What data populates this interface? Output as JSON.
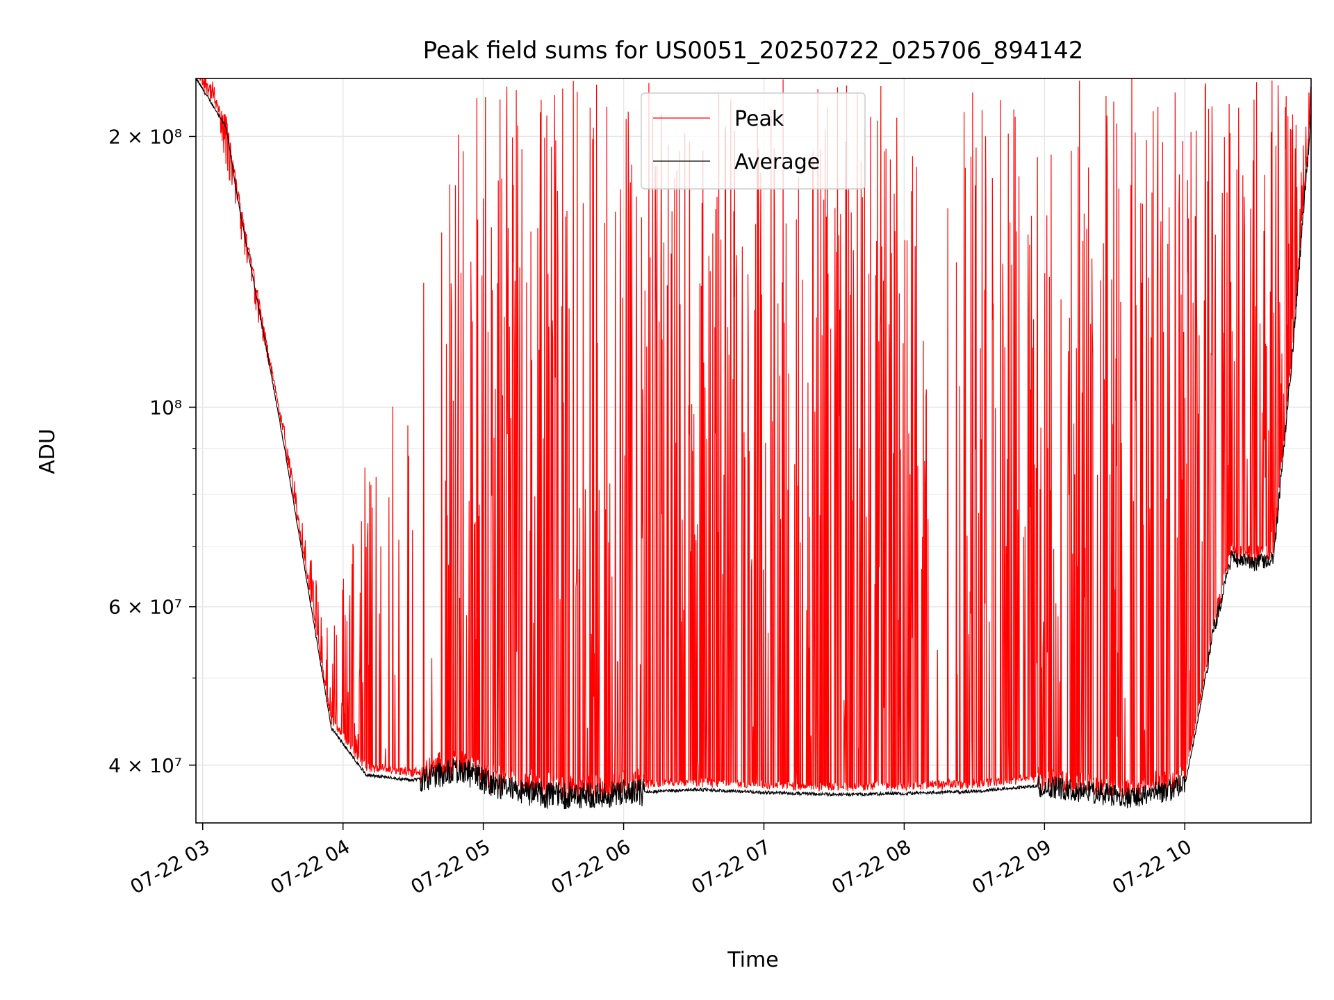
{
  "chart_data": {
    "type": "line",
    "title": "Peak field sums for US0051_20250722_025706_894142",
    "xlabel": "Time",
    "ylabel": "ADU",
    "y_scale": "log",
    "xlim": [
      "2025-07-22T02:57:06",
      "2025-07-22T10:54:00"
    ],
    "ylim": [
      34500000,
      232000000
    ],
    "x_ticks": [
      "07-22 03",
      "07-22 04",
      "07-22 05",
      "07-22 06",
      "07-22 07",
      "07-22 08",
      "07-22 09",
      "07-22 10"
    ],
    "y_ticks": [
      {
        "value": 40000000,
        "label": "4 × 10⁷"
      },
      {
        "value": 60000000,
        "label": "6 × 10⁷"
      },
      {
        "value": 100000000,
        "label": "10⁸"
      },
      {
        "value": 200000000,
        "label": "2 × 10⁸"
      }
    ],
    "grid": true,
    "legend": "upper center",
    "series": [
      {
        "name": "Peak",
        "color": "#ff0000",
        "style": "noisy spikes above baseline",
        "x": [
          "2025-07-22T02:57:06",
          "2025-07-22T03:05:00",
          "2025-07-22T03:15:00",
          "2025-07-22T03:25:00",
          "2025-07-22T03:35:00",
          "2025-07-22T03:45:00",
          "2025-07-22T03:55:00",
          "2025-07-22T04:10:00",
          "2025-07-22T04:30:00",
          "2025-07-22T04:50:00",
          "2025-07-22T05:10:00",
          "2025-07-22T05:30:00",
          "2025-07-22T06:00:00",
          "2025-07-22T06:30:00",
          "2025-07-22T07:00:00",
          "2025-07-22T07:30:00",
          "2025-07-22T08:00:00",
          "2025-07-22T08:30:00",
          "2025-07-22T09:00:00",
          "2025-07-22T09:20:00",
          "2025-07-22T09:40:00",
          "2025-07-22T10:00:00",
          "2025-07-22T10:10:00",
          "2025-07-22T10:20:00",
          "2025-07-22T10:30:00",
          "2025-07-22T10:40:00",
          "2025-07-22T10:54:00"
        ],
        "values_max": [
          232000000,
          215000000,
          160000000,
          120000000,
          95000000,
          70000000,
          55000000,
          90000000,
          120000000,
          232000000,
          232000000,
          232000000,
          232000000,
          232000000,
          232000000,
          232000000,
          232000000,
          232000000,
          232000000,
          232000000,
          232000000,
          232000000,
          232000000,
          232000000,
          232000000,
          232000000,
          232000000
        ]
      },
      {
        "name": "Average",
        "color": "#000000",
        "x": [
          "2025-07-22T02:57:06",
          "2025-07-22T03:10:00",
          "2025-07-22T03:15:00",
          "2025-07-22T03:25:00",
          "2025-07-22T03:35:00",
          "2025-07-22T03:45:00",
          "2025-07-22T03:55:00",
          "2025-07-22T04:10:00",
          "2025-07-22T04:30:00",
          "2025-07-22T04:50:00",
          "2025-07-22T05:10:00",
          "2025-07-22T05:30:00",
          "2025-07-22T06:00:00",
          "2025-07-22T06:30:00",
          "2025-07-22T07:00:00",
          "2025-07-22T07:30:00",
          "2025-07-22T08:00:00",
          "2025-07-22T08:30:00",
          "2025-07-22T09:00:00",
          "2025-07-22T09:20:00",
          "2025-07-22T09:40:00",
          "2025-07-22T10:00:00",
          "2025-07-22T10:05:00",
          "2025-07-22T10:12:00",
          "2025-07-22T10:20:00",
          "2025-07-22T10:30:00",
          "2025-07-22T10:38:00",
          "2025-07-22T10:46:00",
          "2025-07-22T10:54:00"
        ],
        "values": [
          232000000,
          205000000,
          170000000,
          125000000,
          90000000,
          63000000,
          44000000,
          39000000,
          38500000,
          39600000,
          37500000,
          37000000,
          37200000,
          37600000,
          37300000,
          37100000,
          37200000,
          37400000,
          38000000,
          37300000,
          36800000,
          38000000,
          44000000,
          56000000,
          68000000,
          67000000,
          68000000,
          115000000,
          210000000
        ]
      }
    ]
  }
}
